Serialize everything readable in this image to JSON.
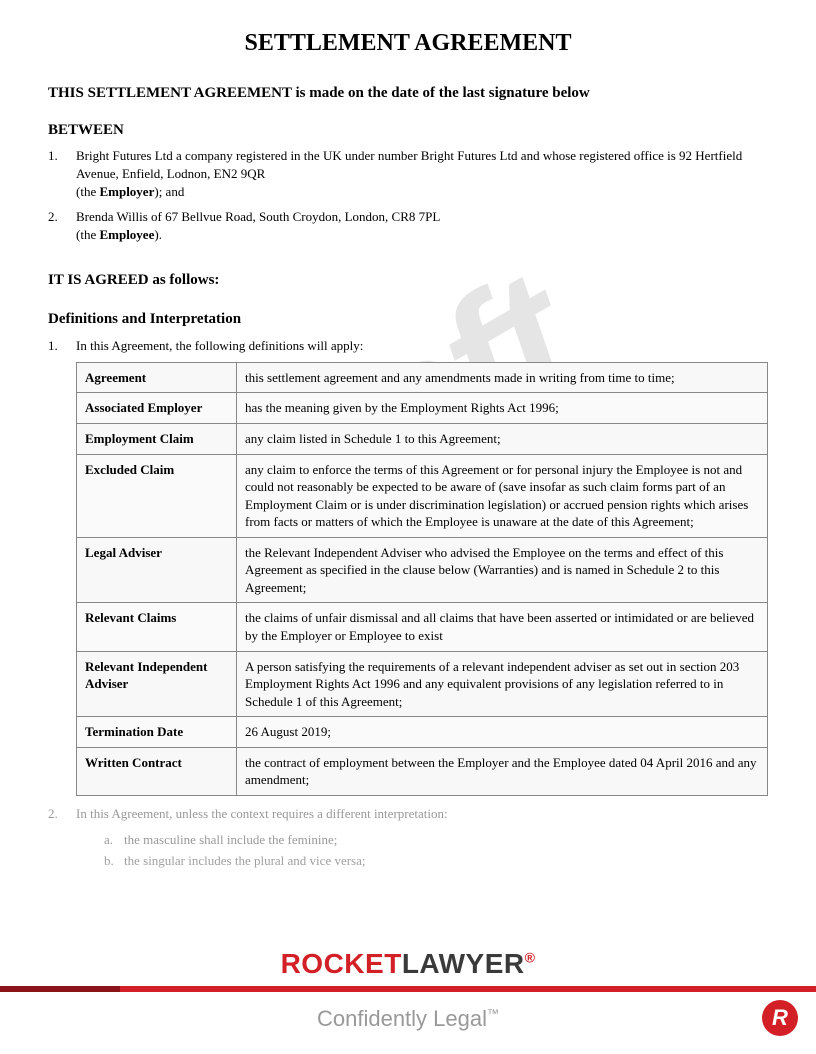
{
  "colors": {
    "brand_red": "#d32027",
    "brand_dark": "#3a3a3a",
    "watermark_gray": "#e5e5e5",
    "faded_text": "#999999",
    "border_gray": "#888888",
    "background": "#ffffff"
  },
  "watermark_text": "Draft",
  "title": "SETTLEMENT AGREEMENT",
  "intro": "THIS SETTLEMENT AGREEMENT is made on the date of the last signature below",
  "between_heading": "BETWEEN",
  "parties": [
    {
      "num": "1.",
      "text": "Bright Futures Ltd a company registered in the UK under number Bright Futures Ltd and whose registered office is 92 Hertfield Avenue, Enfield, Lodnon, EN2 9QR",
      "role_prefix": "(the ",
      "role": "Employer",
      "role_suffix": "); and"
    },
    {
      "num": "2.",
      "text": "Brenda Willis of 67 Bellvue Road, South Croydon, London, CR8 7PL",
      "role_prefix": "(the ",
      "role": "Employee",
      "role_suffix": ")."
    }
  ],
  "agreed_heading": "IT IS AGREED as follows:",
  "defs_heading": "Definitions and Interpretation",
  "defs_intro_num": "1.",
  "defs_intro": "In this Agreement, the following definitions will apply:",
  "definitions": [
    {
      "term": "Agreement",
      "def": "this settlement agreement and any amendments made in writing from time to time;"
    },
    {
      "term": "Associated Employer",
      "def": "has the meaning given by the Employment Rights Act 1996;"
    },
    {
      "term": "Employment Claim",
      "def": "any claim listed in Schedule 1 to this Agreement;"
    },
    {
      "term": "Excluded Claim",
      "def": "any claim to enforce the terms of this Agreement or for personal injury the Employee is not and could not reasonably be expected to be aware of (save insofar as such claim forms part of an Employment Claim or is under discrimination legislation) or accrued pension rights which arises from facts or matters of which the Employee is unaware at the date of this Agreement;"
    },
    {
      "term": "Legal Adviser",
      "def": "the Relevant Independent Adviser who advised the Employee on the terms and effect of this Agreement as specified in the clause below (Warranties) and is named in Schedule 2 to this Agreement;"
    },
    {
      "term": "Relevant Claims",
      "def": "the claims of  unfair dismissal  and all claims that have been asserted or intimidated or are believed by the Employer or Employee to exist"
    },
    {
      "term": "Relevant Independent Adviser",
      "def": "A person satisfying the requirements of a relevant independent adviser as set out in section 203 Employment Rights Act 1996 and any equivalent provisions of any legislation referred to in Schedule 1 of this Agreement;"
    },
    {
      "term": "Termination Date",
      "def": "26 August 2019;"
    },
    {
      "term": "Written Contract",
      "def": "the contract of employment between the Employer and the Employee dated 04 April 2016 and any amendment;"
    }
  ],
  "clause2_num": "2.",
  "clause2_text": "In this Agreement, unless the context requires a different interpretation:",
  "clause2_items": [
    {
      "letter": "a.",
      "text": "the masculine shall include the feminine;"
    },
    {
      "letter": "b.",
      "text": "the singular includes the plural and vice versa;"
    }
  ],
  "footer": {
    "logo_part1": "ROCKET",
    "logo_part2": "LAWYER",
    "reg": "®",
    "tagline": "Confidently Legal",
    "tm": "™",
    "badge": "R"
  }
}
